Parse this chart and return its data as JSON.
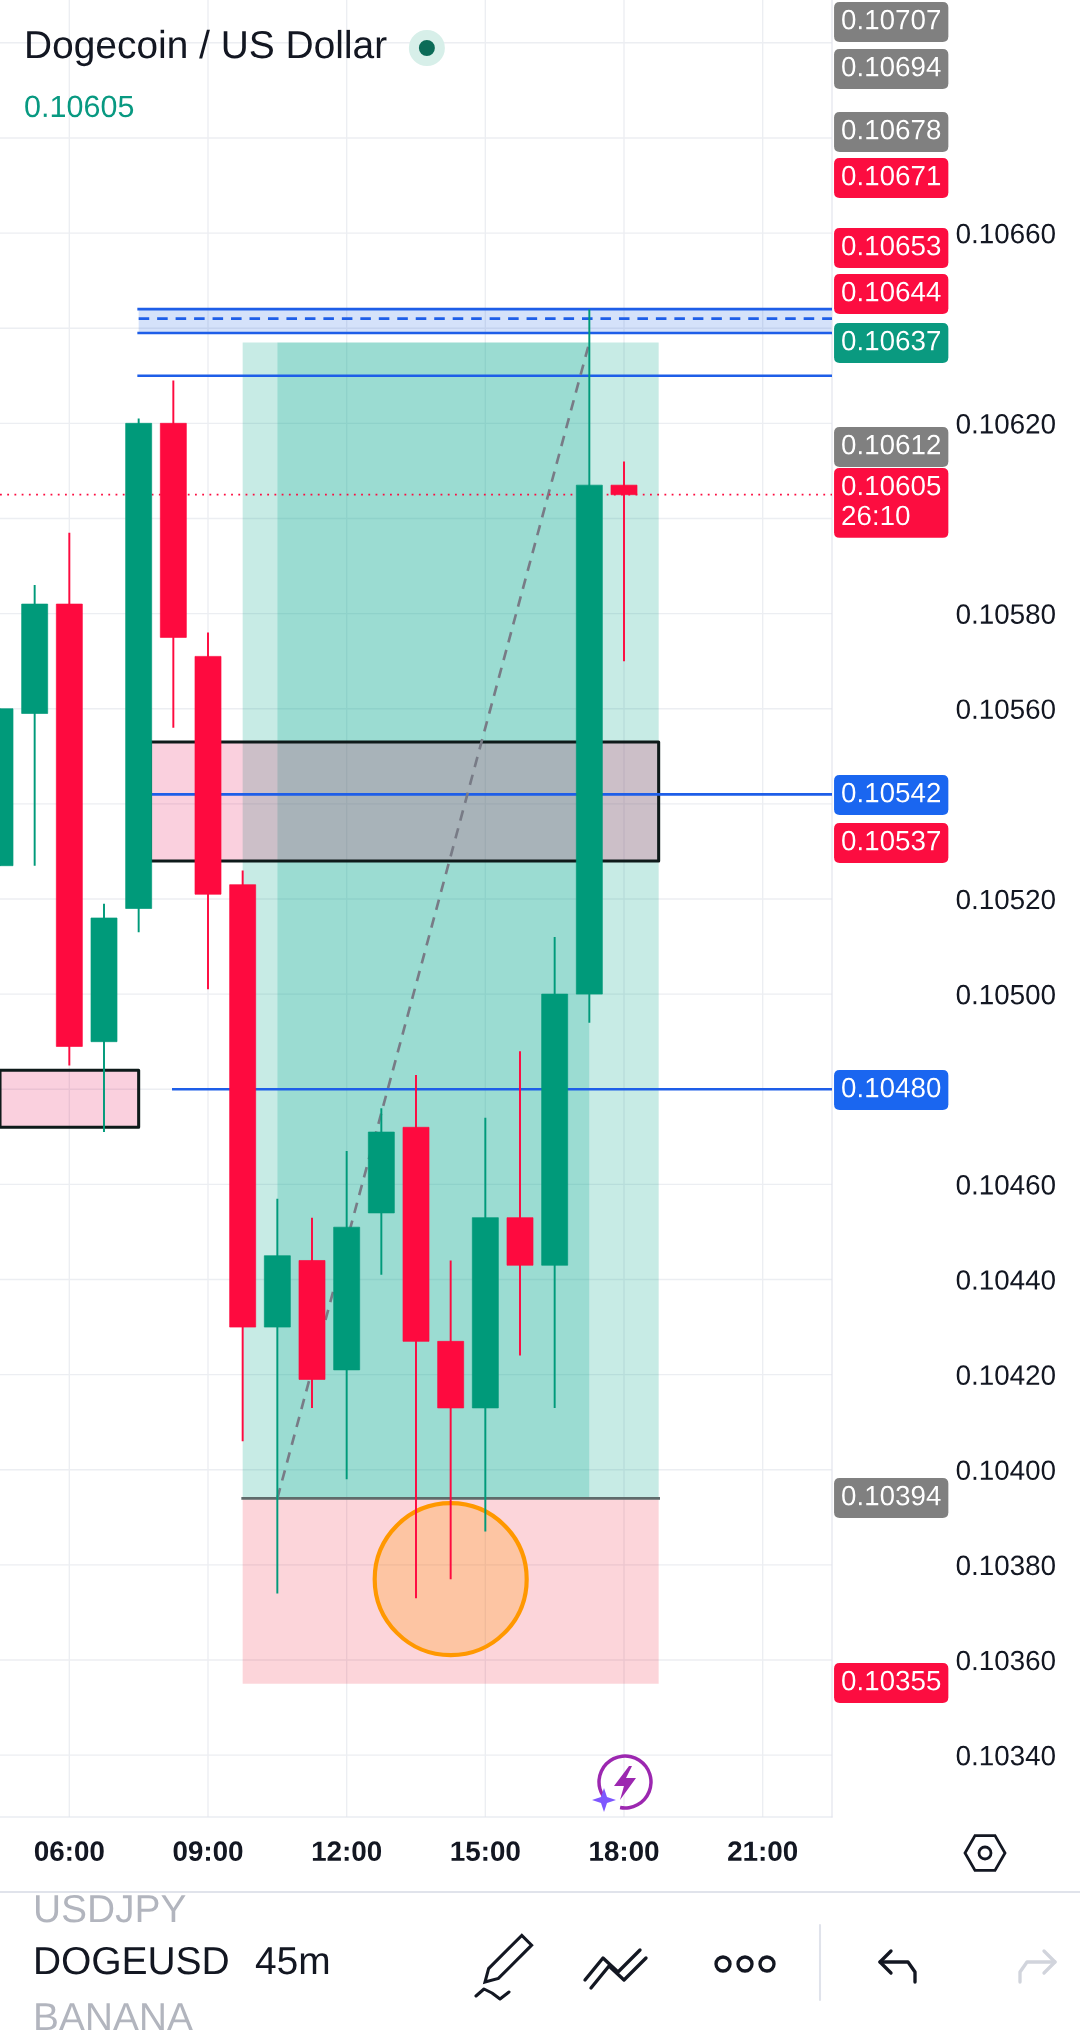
{
  "chart_data": {
    "type": "candlestick",
    "title": "Dogecoin / US Dollar",
    "subtitle": "0.10605",
    "annotations": [
      "USDJPY",
      "DOGEUSD",
      "BANANA",
      "45m",
      "0.10707",
      "0.10694",
      "0.10678",
      "0.10671",
      "0.10653",
      "0.10644",
      "0.10637",
      "0.10612",
      "0.10542",
      "0.10537",
      "0.10480",
      "0.10394",
      "0.10355"
    ],
    "xlim": [
      4.5,
      22.5
    ],
    "xticks": [
      {
        "value": 6,
        "label": "06:00"
      },
      {
        "value": 9,
        "label": "09:00"
      },
      {
        "value": 12,
        "label": "12:00"
      },
      {
        "value": 15,
        "label": "15:00"
      },
      {
        "value": 18,
        "label": "18:00"
      },
      {
        "value": 21,
        "label": "21:00"
      }
    ],
    "ylim": [
      0.10327,
      0.10709
    ],
    "yticks": [
      {
        "value": 0.1034,
        "label": "0.10340"
      },
      {
        "value": 0.1036,
        "label": "0.10360"
      },
      {
        "value": 0.1038,
        "label": "0.10380"
      },
      {
        "value": 0.104,
        "label": "0.10400"
      },
      {
        "value": 0.1042,
        "label": "0.10420"
      },
      {
        "value": 0.1044,
        "label": "0.10440"
      },
      {
        "value": 0.1046,
        "label": "0.10460"
      },
      {
        "value": 0.1048,
        "label": null
      },
      {
        "value": 0.105,
        "label": "0.10500"
      },
      {
        "value": 0.1052,
        "label": "0.10520"
      },
      {
        "value": 0.1054,
        "label": null
      },
      {
        "value": 0.1056,
        "label": "0.10560"
      },
      {
        "value": 0.1058,
        "label": "0.10580"
      },
      {
        "value": 0.106,
        "label": null
      },
      {
        "value": 0.1062,
        "label": "0.10620"
      },
      {
        "value": 0.1064,
        "label": null
      },
      {
        "value": 0.1066,
        "label": "0.10660"
      },
      {
        "value": 0.1068,
        "label": null
      },
      {
        "value": 0.107,
        "label": null
      }
    ],
    "grid": true,
    "series": [
      {
        "x": [
          4.5,
          5.25,
          6,
          6.75,
          7.5,
          8.25,
          9,
          9.75,
          10.5,
          11.25,
          12,
          12.75,
          13.5,
          14.25,
          15,
          15.75,
          16.5,
          17.25,
          18
        ],
        "ohlc": [
          [
            0.10527,
            0.1056,
            0.10527,
            0.1056
          ],
          [
            0.10559,
            0.10586,
            0.10527,
            0.10582
          ],
          [
            0.10582,
            0.10597,
            0.10485,
            0.10489
          ],
          [
            0.1049,
            0.10519,
            0.10471,
            0.10516
          ],
          [
            0.10518,
            0.10621,
            0.10513,
            0.1062
          ],
          [
            0.1062,
            0.10629,
            0.10556,
            0.10575
          ],
          [
            0.10571,
            0.10576,
            0.10501,
            0.10521
          ],
          [
            0.10523,
            0.10526,
            0.10406,
            0.1043
          ],
          [
            0.1043,
            0.10457,
            0.10374,
            0.10445
          ],
          [
            0.10444,
            0.10453,
            0.10413,
            0.10419
          ],
          [
            0.10421,
            0.10467,
            0.10398,
            0.10451
          ],
          [
            0.10454,
            0.10476,
            0.10441,
            0.10471
          ],
          [
            0.10472,
            0.10483,
            0.10373,
            0.10427
          ],
          [
            0.10427,
            0.10444,
            0.10377,
            0.10413
          ],
          [
            0.10413,
            0.10474,
            0.10387,
            0.10453
          ],
          [
            0.10453,
            0.10488,
            0.10424,
            0.10443
          ],
          [
            0.10443,
            0.10512,
            0.10413,
            0.105
          ],
          [
            0.105,
            0.10644,
            0.10494,
            0.10607
          ],
          [
            0.10607,
            0.10612,
            0.1057,
            0.10605
          ]
        ],
        "colors": [
          "#009a7a",
          "#009a7a",
          "#fe0a3f",
          "#009a7a",
          "#009a7a",
          "#fe0a3f",
          "#fe0a3f",
          "#fe0a3f",
          "#009a7a",
          "#fe0a3f",
          "#009a7a",
          "#009a7a",
          "#fe0a3f",
          "#fe0a3f",
          "#009a7a",
          "#fe0a3f",
          "#009a7a",
          "#009a7a",
          "#fe0a3f"
        ]
      },
      {
        "type": "line",
        "x": [
          9.75,
          18.75
        ],
        "values": [
          null,
          null
        ],
        "lower": [
          0.10355,
          0.10355
        ],
        "upper": [
          0.10394,
          0.10394
        ],
        "color": "#fcd5da"
      },
      {
        "type": "line",
        "x": [
          9.75,
          10.5
        ],
        "values": [
          null,
          null
        ],
        "lower": [
          0.10394,
          0.10394
        ],
        "upper": [
          0.10637,
          0.10637
        ],
        "color": "#c7ebe5"
      },
      {
        "type": "line",
        "x": [
          10.5,
          17.25
        ],
        "values": [
          null,
          null
        ],
        "lower": [
          0.10394,
          0.10394
        ],
        "upper": [
          0.10637,
          0.10637
        ],
        "color": "#9bdcd2"
      },
      {
        "type": "line",
        "x": [
          17.25,
          18.75
        ],
        "values": [
          null,
          null
        ],
        "lower": [
          0.10394,
          0.10394
        ],
        "upper": [
          0.10637,
          0.10637
        ],
        "color": "#c7ebe5"
      },
      {
        "type": "line",
        "x": [
          9.75,
          18.75
        ],
        "values": [
          0.10394,
          0.10394
        ],
        "color": "#5f6b6b"
      },
      {
        "type": "line",
        "x": [
          7.5,
          22.5
        ],
        "values": [
          null,
          null
        ],
        "lower": [
          0.10639,
          0.10639
        ],
        "upper": [
          0.10644,
          0.10644
        ],
        "color": "#d5e2fa"
      },
      {
        "type": "line",
        "x": [
          7.5,
          22.5
        ],
        "values": [
          0.10644,
          0.10644
        ],
        "color": "#1e5ee8"
      },
      {
        "type": "line",
        "x": [
          7.5,
          22.5
        ],
        "values": [
          0.10642,
          0.10642
        ],
        "color": "#1e5ee8",
        "line_style": "dashed"
      },
      {
        "type": "line",
        "x": [
          7.5,
          22.5
        ],
        "values": [
          0.10639,
          0.10639
        ],
        "color": "#1e5ee8"
      },
      {
        "type": "line",
        "x": [
          7.5,
          22.5
        ],
        "values": [
          0.1063,
          0.1063
        ],
        "color": "#1e5ee8"
      },
      {
        "type": "line",
        "x": [
          7.75,
          18.75
        ],
        "values": [
          null,
          null
        ],
        "lower": [
          0.10528,
          0.10528
        ],
        "upper": [
          0.10553,
          0.10553
        ],
        "color": "#fad0de",
        "line_style": "solid"
      },
      {
        "type": "line",
        "x": [
          7.75,
          22.5
        ],
        "values": [
          0.10542,
          0.10542
        ],
        "color": "#1e5ee8"
      },
      {
        "type": "line",
        "x": [
          4.5,
          7.5
        ],
        "values": [
          null,
          null
        ],
        "lower": [
          0.10472,
          0.10472
        ],
        "upper": [
          0.10484,
          0.10484
        ],
        "color": "#fad0de",
        "line_style": "solid"
      },
      {
        "type": "line",
        "x": [
          8.25,
          22.5
        ],
        "values": [
          0.1048,
          0.1048
        ],
        "color": "#1e5ee8"
      },
      {
        "type": "line",
        "x": [
          10.5,
          17.25
        ],
        "values": [
          0.10394,
          0.10637
        ],
        "color": "#787b86",
        "line_style": "dashed"
      }
    ],
    "ref_lines": [
      {
        "axis": "y",
        "value": 0.10605,
        "label": "0.10605\n26:10",
        "color": "#fc0d40",
        "line_style": "dotted"
      }
    ]
  }
}
